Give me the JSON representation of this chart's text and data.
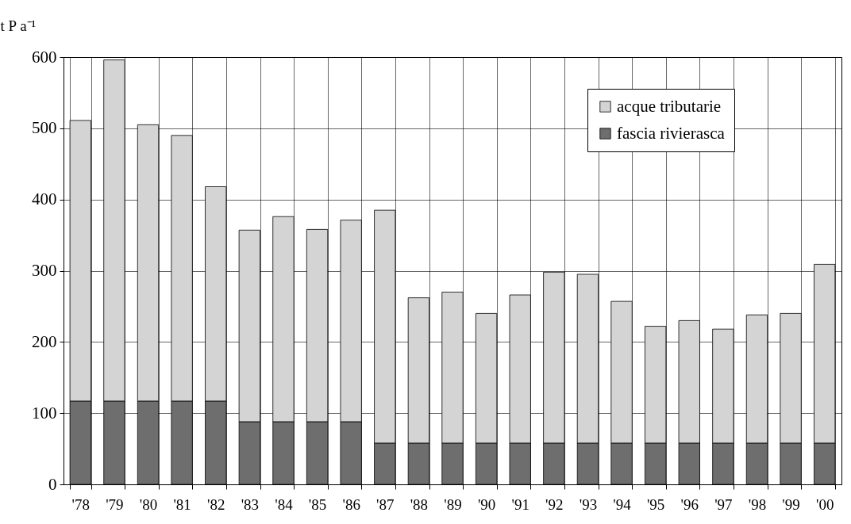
{
  "chart_data": {
    "type": "bar",
    "stacked": true,
    "ylabel": "t P a⁻¹",
    "categories": [
      "'78",
      "'79",
      "'80",
      "'81",
      "'82",
      "'83",
      "'84",
      "'85",
      "'86",
      "'87",
      "'88",
      "'89",
      "'90",
      "'91",
      "'92",
      "'93",
      "'94",
      "'95",
      "'96",
      "'97",
      "'98",
      "'99",
      "'00"
    ],
    "series": [
      {
        "name": "fascia rivierasca",
        "color": "#6e6e6e",
        "values": [
          117,
          117,
          117,
          117,
          117,
          88,
          88,
          88,
          88,
          58,
          58,
          58,
          58,
          58,
          58,
          58,
          58,
          58,
          58,
          58,
          58,
          58,
          58
        ]
      },
      {
        "name": "acque tributarie",
        "color": "#d4d4d4",
        "values": [
          394,
          479,
          388,
          373,
          301,
          269,
          288,
          270,
          283,
          327,
          204,
          212,
          182,
          208,
          240,
          237,
          199,
          164,
          172,
          160,
          180,
          182,
          251
        ]
      }
    ],
    "ylim": [
      0,
      600
    ],
    "yticks": [
      0,
      100,
      200,
      300,
      400,
      500,
      600
    ],
    "grid": true,
    "legend": "top right"
  }
}
